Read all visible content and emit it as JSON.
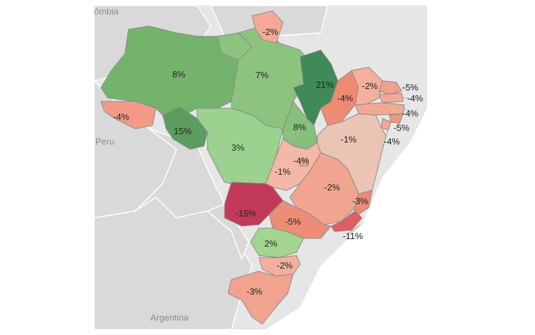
{
  "map": {
    "countries": {
      "colombia": "ômbia",
      "peru": "Peru",
      "argentina": "Argentina",
      "brazil": "razil"
    },
    "states": {
      "amazonas": {
        "value": "8%",
        "color": "#74b36c"
      },
      "para": {
        "value": "7%",
        "color": "#8cc47e"
      },
      "amapa": {
        "value": "-2%",
        "color": "#f4aa96"
      },
      "maranhao": {
        "value": "21%",
        "color": "#3f8a56"
      },
      "piaui": {
        "value": "-4%",
        "color": "#ef8a72"
      },
      "ceara": {
        "value": "-2%",
        "color": "#f4b09e"
      },
      "rio_grande_do_norte": {
        "value": "-5%",
        "color": "#f0a08c"
      },
      "paraiba": {
        "value": "-4%",
        "color": "#f3a894"
      },
      "pernambuco": {
        "value": "-4%",
        "color": "#f3a894"
      },
      "alagoas": {
        "value": "-5%",
        "color": "#ef9680"
      },
      "sergipe": {
        "value": "-4%",
        "color": "#f3a894"
      },
      "acre": {
        "value": "-4%",
        "color": "#f39a86"
      },
      "rondonia": {
        "value": "15%",
        "color": "#5c9c5f"
      },
      "mato_grosso": {
        "value": "3%",
        "color": "#9bd28f"
      },
      "tocantins": {
        "value": "8%",
        "color": "#86c07a"
      },
      "bahia": {
        "value": "-1%",
        "color": "#ebc4b4"
      },
      "goias": {
        "value": "-1%",
        "color": "#f3b8a6"
      },
      "distrito_federal": {
        "value": "-4%",
        "color": "#f1a28e"
      },
      "minas_gerais": {
        "value": "-2%",
        "color": "#f1a591"
      },
      "espirito_santo": {
        "value": "-3%",
        "color": "#ec8b74"
      },
      "rio_de_janeiro": {
        "value": "-11%",
        "color": "#df5d63"
      },
      "mato_grosso_do_sul": {
        "value": "-15%",
        "color": "#c23a58"
      },
      "sao_paulo": {
        "value": "-5%",
        "color": "#ec8e77"
      },
      "parana": {
        "value": "2%",
        "color": "#a3d590"
      },
      "santa_catarina": {
        "value": "-2%",
        "color": "#f4b09e"
      },
      "rio_grande_do_sul": {
        "value": "-3%",
        "color": "#f1a38f"
      },
      "roraima": {
        "value": "",
        "color": "#8cc47e"
      }
    },
    "outside_labels": {
      "rio_grande_do_norte": "-5%",
      "paraiba": "-4%",
      "pernambuco": "-4%",
      "alagoas": "-5%",
      "sergipe": "-4%",
      "rio_de_janeiro": "-11%"
    }
  }
}
